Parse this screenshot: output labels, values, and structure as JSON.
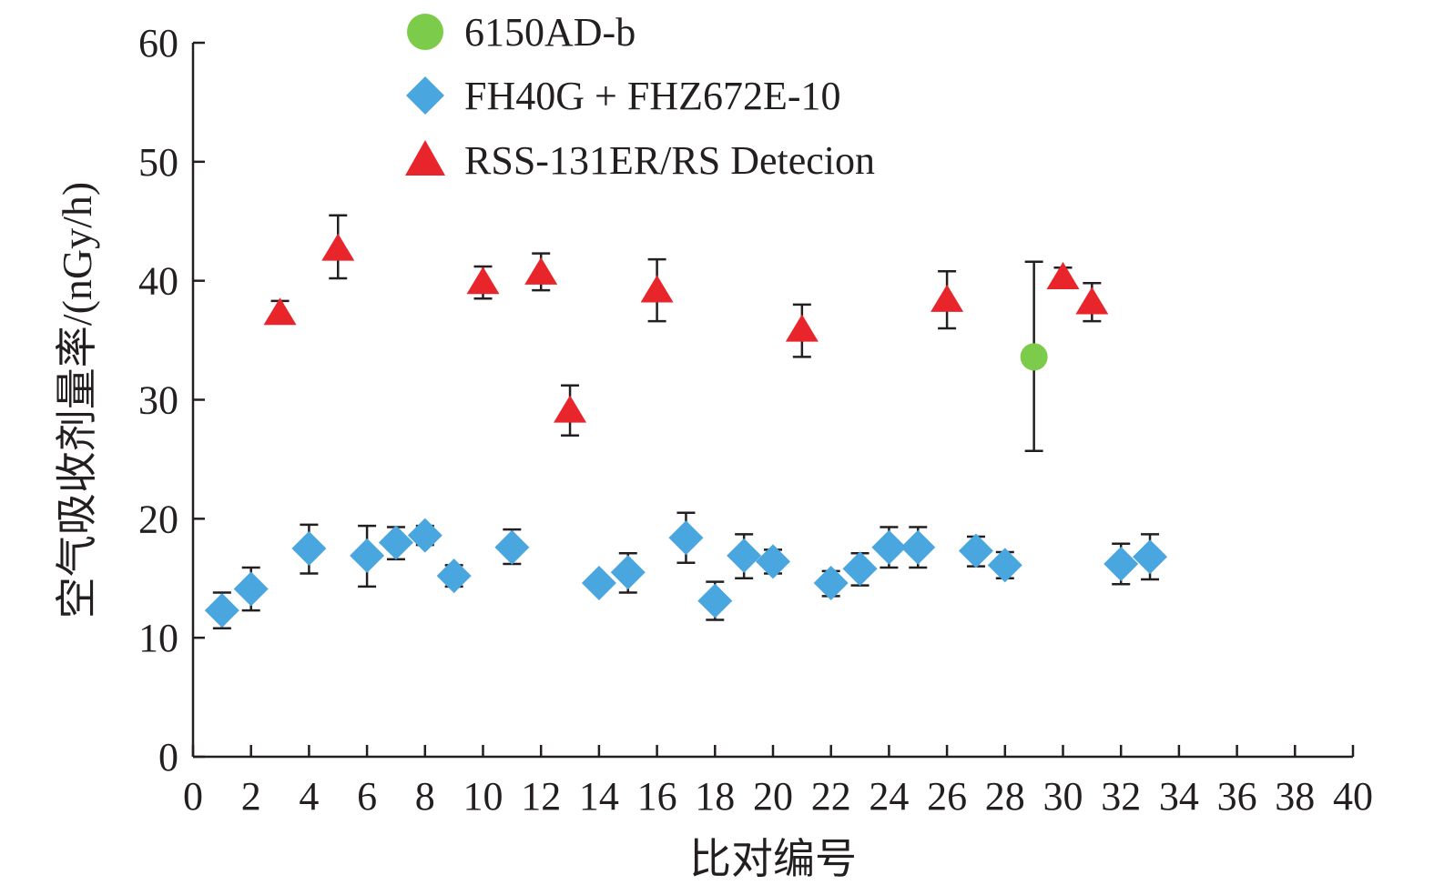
{
  "chart_data": {
    "type": "scatter",
    "title": "",
    "xlabel": "比对编号",
    "ylabel": "空气吸收剂量率/(nGy/h)",
    "xlim": [
      0,
      40
    ],
    "ylim": [
      0,
      60
    ],
    "xticks": [
      0,
      2,
      4,
      6,
      8,
      10,
      12,
      14,
      16,
      18,
      20,
      22,
      24,
      26,
      28,
      30,
      32,
      34,
      36,
      38,
      40
    ],
    "yticks": [
      0,
      10,
      20,
      30,
      40,
      50,
      60
    ],
    "grid": false,
    "legend_position": "top-center",
    "series": [
      {
        "name": "6150AD-b",
        "marker": "circle",
        "color": "#7dcb4a",
        "points": [
          {
            "x": 29,
            "y": 33.6,
            "low": 25.7,
            "high": 41.6
          }
        ]
      },
      {
        "name": "FH40G + FHZ672E-10",
        "marker": "diamond",
        "color": "#4aa6df",
        "points": [
          {
            "x": 1,
            "y": 12.3,
            "low": 10.8,
            "high": 13.8
          },
          {
            "x": 2,
            "y": 14.1,
            "low": 12.3,
            "high": 15.9
          },
          {
            "x": 4,
            "y": 17.5,
            "low": 15.4,
            "high": 19.5
          },
          {
            "x": 6,
            "y": 16.9,
            "low": 14.3,
            "high": 19.4
          },
          {
            "x": 7,
            "y": 18.0,
            "low": 16.6,
            "high": 19.3
          },
          {
            "x": 8,
            "y": 18.6,
            "low": 17.8,
            "high": 19.4
          },
          {
            "x": 9,
            "y": 15.2,
            "low": 14.3,
            "high": 16.1
          },
          {
            "x": 11,
            "y": 17.6,
            "low": 16.2,
            "high": 19.1
          },
          {
            "x": 14,
            "y": 14.6,
            "low": 14.1,
            "high": 15.1
          },
          {
            "x": 15,
            "y": 15.5,
            "low": 13.8,
            "high": 17.1
          },
          {
            "x": 17,
            "y": 18.4,
            "low": 16.3,
            "high": 20.5
          },
          {
            "x": 18,
            "y": 13.1,
            "low": 11.5,
            "high": 14.7
          },
          {
            "x": 19,
            "y": 16.9,
            "low": 15.0,
            "high": 18.7
          },
          {
            "x": 20,
            "y": 16.4,
            "low": 15.4,
            "high": 17.4
          },
          {
            "x": 22,
            "y": 14.6,
            "low": 13.5,
            "high": 15.6
          },
          {
            "x": 23,
            "y": 15.8,
            "low": 14.4,
            "high": 17.1
          },
          {
            "x": 24,
            "y": 17.6,
            "low": 15.9,
            "high": 19.3
          },
          {
            "x": 25,
            "y": 17.6,
            "low": 15.9,
            "high": 19.3
          },
          {
            "x": 27,
            "y": 17.3,
            "low": 16.0,
            "high": 18.5
          },
          {
            "x": 28,
            "y": 16.1,
            "low": 15.0,
            "high": 17.2
          },
          {
            "x": 32,
            "y": 16.2,
            "low": 14.5,
            "high": 17.9
          },
          {
            "x": 33,
            "y": 16.8,
            "low": 14.9,
            "high": 18.7
          }
        ]
      },
      {
        "name": "RSS-131ER/RS Detecion",
        "marker": "triangle",
        "color": "#e8252b",
        "points": [
          {
            "x": 3,
            "y": 37.2,
            "low": 36.5,
            "high": 38.3
          },
          {
            "x": 5,
            "y": 42.6,
            "low": 40.2,
            "high": 45.5
          },
          {
            "x": 10,
            "y": 39.8,
            "low": 38.5,
            "high": 41.2
          },
          {
            "x": 12,
            "y": 40.6,
            "low": 39.2,
            "high": 42.3
          },
          {
            "x": 13,
            "y": 29.0,
            "low": 27.0,
            "high": 31.2
          },
          {
            "x": 16,
            "y": 39.1,
            "low": 36.6,
            "high": 41.8
          },
          {
            "x": 21,
            "y": 35.8,
            "low": 33.6,
            "high": 38.0
          },
          {
            "x": 26,
            "y": 38.3,
            "low": 36.0,
            "high": 40.8
          },
          {
            "x": 30,
            "y": 40.2,
            "low": 39.4,
            "high": 41.1
          },
          {
            "x": 31,
            "y": 38.1,
            "low": 36.6,
            "high": 39.8
          }
        ]
      }
    ]
  }
}
